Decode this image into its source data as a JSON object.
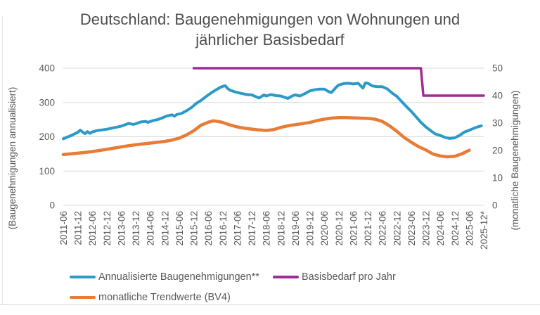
{
  "title": {
    "line1": "Deutschland: Baugenehmigungen von Wohnungen und",
    "line2": "jährlicher Basisbedarf"
  },
  "chart_data": {
    "type": "line",
    "title": "Deutschland: Baugenehmigungen von Wohnungen und jährlicher Basisbedarf",
    "grid": "horizontal",
    "legend_position": "bottom",
    "x_start": "2011-06",
    "x_end": "2025-12",
    "x_tick_labels": [
      "2011-06",
      "2011-12",
      "2012-06",
      "2012-12",
      "2013-06",
      "2013-12",
      "2014-06",
      "2014-12",
      "2015-06",
      "2015-12",
      "2016-06",
      "2016-12",
      "2017-06",
      "2017-12",
      "2018-06",
      "2018-12",
      "2019-06",
      "2019-12",
      "2020-06",
      "2020-12",
      "2021-06",
      "2021-12",
      "2022-06",
      "2022-12",
      "2023-06",
      "2023-12",
      "2024-06",
      "2024-12",
      "2025-06",
      "2025-12*"
    ],
    "left_axis": {
      "label": "(Baugenehmigungen annualisiert)",
      "ticks": [
        0,
        100,
        200,
        300,
        400
      ],
      "range": [
        0,
        400
      ]
    },
    "right_axis": {
      "label": "(monatliche Baugenehmigungen)",
      "ticks": [
        0,
        10,
        20,
        30,
        40,
        50
      ],
      "range": [
        0,
        50
      ]
    },
    "series": [
      {
        "id": "annualized-permits",
        "name": "Annualisierte Baugenehmigungen**",
        "axis": "left",
        "color": "#2b9ac9",
        "points": [
          [
            "2011-06",
            194
          ],
          [
            "2011-08",
            200
          ],
          [
            "2011-10",
            206
          ],
          [
            "2011-12",
            213
          ],
          [
            "2012-01",
            219
          ],
          [
            "2012-02",
            214
          ],
          [
            "2012-03",
            209
          ],
          [
            "2012-04",
            215
          ],
          [
            "2012-05",
            210
          ],
          [
            "2012-06",
            214
          ],
          [
            "2012-08",
            218
          ],
          [
            "2012-10",
            220
          ],
          [
            "2012-12",
            222
          ],
          [
            "2013-02",
            225
          ],
          [
            "2013-04",
            228
          ],
          [
            "2013-06",
            231
          ],
          [
            "2013-08",
            236
          ],
          [
            "2013-09",
            239
          ],
          [
            "2013-11",
            236
          ],
          [
            "2013-12",
            238
          ],
          [
            "2014-02",
            243
          ],
          [
            "2014-04",
            245
          ],
          [
            "2014-05",
            242
          ],
          [
            "2014-07",
            247
          ],
          [
            "2014-09",
            250
          ],
          [
            "2014-11",
            255
          ],
          [
            "2014-12",
            258
          ],
          [
            "2015-01",
            261
          ],
          [
            "2015-03",
            264
          ],
          [
            "2015-04",
            260
          ],
          [
            "2015-05",
            265
          ],
          [
            "2015-07",
            268
          ],
          [
            "2015-09",
            276
          ],
          [
            "2015-11",
            285
          ],
          [
            "2015-12",
            291
          ],
          [
            "2016-01",
            297
          ],
          [
            "2016-03",
            306
          ],
          [
            "2016-05",
            317
          ],
          [
            "2016-07",
            327
          ],
          [
            "2016-09",
            336
          ],
          [
            "2016-11",
            344
          ],
          [
            "2016-12",
            347
          ],
          [
            "2017-01",
            349
          ],
          [
            "2017-02",
            341
          ],
          [
            "2017-03",
            336
          ],
          [
            "2017-05",
            331
          ],
          [
            "2017-06",
            329
          ],
          [
            "2017-08",
            326
          ],
          [
            "2017-10",
            323
          ],
          [
            "2017-12",
            322
          ],
          [
            "2018-02",
            316
          ],
          [
            "2018-03",
            313
          ],
          [
            "2018-05",
            322
          ],
          [
            "2018-06",
            319
          ],
          [
            "2018-08",
            323
          ],
          [
            "2018-10",
            320
          ],
          [
            "2018-12",
            319
          ],
          [
            "2019-02",
            314
          ],
          [
            "2019-03",
            312
          ],
          [
            "2019-05",
            320
          ],
          [
            "2019-06",
            322
          ],
          [
            "2019-08",
            319
          ],
          [
            "2019-10",
            326
          ],
          [
            "2019-12",
            334
          ],
          [
            "2020-02",
            337
          ],
          [
            "2020-04",
            339
          ],
          [
            "2020-06",
            339
          ],
          [
            "2020-08",
            331
          ],
          [
            "2020-09",
            329
          ],
          [
            "2020-11",
            345
          ],
          [
            "2020-12",
            351
          ],
          [
            "2021-02",
            355
          ],
          [
            "2021-04",
            356
          ],
          [
            "2021-06",
            354
          ],
          [
            "2021-08",
            356
          ],
          [
            "2021-10",
            342
          ],
          [
            "2021-11",
            357
          ],
          [
            "2021-12",
            356
          ],
          [
            "2022-02",
            348
          ],
          [
            "2022-04",
            346
          ],
          [
            "2022-06",
            346
          ],
          [
            "2022-08",
            340
          ],
          [
            "2022-10",
            328
          ],
          [
            "2022-12",
            318
          ],
          [
            "2023-02",
            303
          ],
          [
            "2023-04",
            288
          ],
          [
            "2023-06",
            274
          ],
          [
            "2023-08",
            258
          ],
          [
            "2023-10",
            242
          ],
          [
            "2023-12",
            229
          ],
          [
            "2024-02",
            218
          ],
          [
            "2024-04",
            208
          ],
          [
            "2024-06",
            204
          ],
          [
            "2024-08",
            198
          ],
          [
            "2024-10",
            195
          ],
          [
            "2024-12",
            197
          ],
          [
            "2025-02",
            204
          ],
          [
            "2025-04",
            214
          ],
          [
            "2025-06",
            219
          ],
          [
            "2025-08",
            225
          ],
          [
            "2025-10",
            230
          ],
          [
            "2025-11",
            232
          ]
        ]
      },
      {
        "id": "monthly-trend",
        "name": "monatliche Trendwerte (BV4)",
        "axis": "right",
        "color": "#e87b36",
        "points": [
          [
            "2011-06",
            18.5
          ],
          [
            "2011-12",
            19.0
          ],
          [
            "2012-06",
            19.6
          ],
          [
            "2012-12",
            20.4
          ],
          [
            "2013-06",
            21.3
          ],
          [
            "2013-12",
            22.1
          ],
          [
            "2014-06",
            22.7
          ],
          [
            "2014-12",
            23.3
          ],
          [
            "2015-03",
            23.8
          ],
          [
            "2015-06",
            24.5
          ],
          [
            "2015-09",
            25.7
          ],
          [
            "2015-12",
            27.2
          ],
          [
            "2016-03",
            29.2
          ],
          [
            "2016-06",
            30.3
          ],
          [
            "2016-08",
            30.8
          ],
          [
            "2016-10",
            30.6
          ],
          [
            "2016-12",
            30.2
          ],
          [
            "2017-03",
            29.3
          ],
          [
            "2017-06",
            28.6
          ],
          [
            "2017-09",
            28.1
          ],
          [
            "2017-12",
            27.8
          ],
          [
            "2018-03",
            27.5
          ],
          [
            "2018-06",
            27.3
          ],
          [
            "2018-09",
            27.6
          ],
          [
            "2018-12",
            28.4
          ],
          [
            "2019-03",
            29.0
          ],
          [
            "2019-06",
            29.4
          ],
          [
            "2019-09",
            29.8
          ],
          [
            "2019-12",
            30.2
          ],
          [
            "2020-03",
            30.9
          ],
          [
            "2020-06",
            31.4
          ],
          [
            "2020-09",
            31.8
          ],
          [
            "2020-12",
            32.0
          ],
          [
            "2021-03",
            32.0
          ],
          [
            "2021-06",
            31.9
          ],
          [
            "2021-09",
            31.8
          ],
          [
            "2021-12",
            31.7
          ],
          [
            "2022-03",
            31.4
          ],
          [
            "2022-06",
            30.6
          ],
          [
            "2022-09",
            29.0
          ],
          [
            "2022-12",
            27.0
          ],
          [
            "2023-03",
            24.8
          ],
          [
            "2023-06",
            23.0
          ],
          [
            "2023-09",
            21.4
          ],
          [
            "2023-12",
            20.2
          ],
          [
            "2024-03",
            18.7
          ],
          [
            "2024-06",
            18.0
          ],
          [
            "2024-09",
            17.7
          ],
          [
            "2024-12",
            17.9
          ],
          [
            "2025-03",
            18.8
          ],
          [
            "2025-06",
            20.1
          ]
        ]
      },
      {
        "id": "base-demand",
        "name": "Basisbedarf pro Jahr",
        "axis": "left",
        "color": "#a02b93",
        "points": [
          [
            "2015-12",
            400
          ],
          [
            "2023-10",
            400
          ],
          [
            "2023-11",
            320
          ],
          [
            "2025-12",
            320
          ]
        ]
      }
    ],
    "legend": [
      {
        "label": "Annualisierte Baugenehmigungen**",
        "color": "#2b9ac9"
      },
      {
        "label": "Basisbedarf pro Jahr",
        "color": "#a02b93"
      },
      {
        "label": "monatliche Trendwerte (BV4)",
        "color": "#e87b36"
      }
    ]
  }
}
